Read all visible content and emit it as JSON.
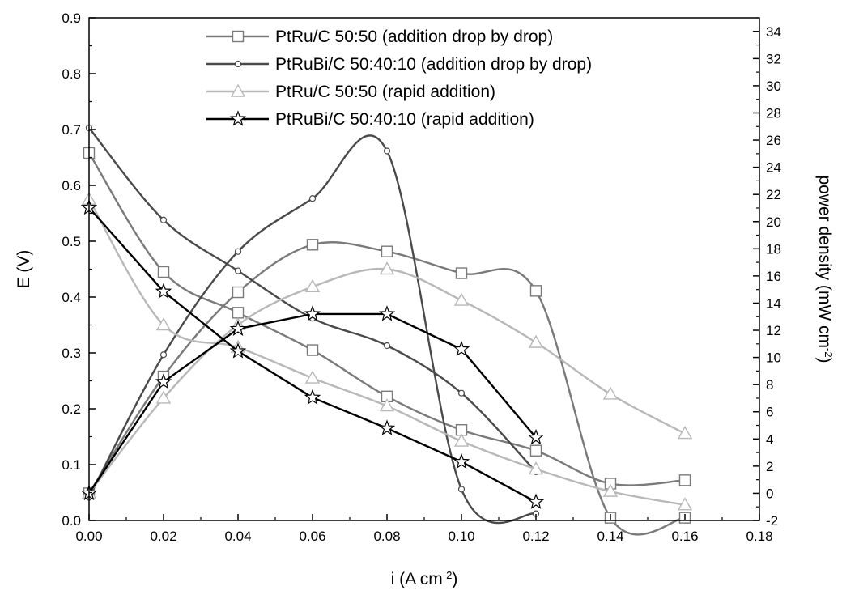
{
  "chart_data": {
    "type": "line",
    "x_axis": {
      "range": [
        0.0,
        0.18
      ],
      "ticks": [
        "0.00",
        "0.02",
        "0.04",
        "0.06",
        "0.08",
        "0.10",
        "0.12",
        "0.14",
        "0.16",
        "0.18"
      ],
      "label_main": "i (A cm",
      "label_sup": "-2",
      "label_tail": ")"
    },
    "y_left": {
      "range": [
        0.0,
        0.9
      ],
      "ticks": [
        "0.0",
        "0.1",
        "0.2",
        "0.3",
        "0.4",
        "0.5",
        "0.6",
        "0.7",
        "0.8",
        "0.9"
      ],
      "label": "E (V)"
    },
    "y_right": {
      "range": [
        -2,
        35
      ],
      "ticks": [
        "-2",
        "0",
        "2",
        "4",
        "6",
        "8",
        "10",
        "12",
        "14",
        "16",
        "18",
        "20",
        "22",
        "24",
        "26",
        "28",
        "30",
        "32",
        "34"
      ],
      "label_main": "power density (mW cm",
      "label_sup": "-2",
      "label_tail": ")"
    },
    "legend_position": "top-center",
    "series": [
      {
        "name": "PtRu/C 50:50 (addition drop by drop)",
        "marker": "square",
        "color": "#7a7a7a",
        "voltage": {
          "x": [
            0,
            0.02,
            0.04,
            0.06,
            0.08,
            0.1,
            0.12,
            0.14,
            0.16
          ],
          "y": [
            0.658,
            0.445,
            0.372,
            0.305,
            0.222,
            0.162,
            0.125,
            0.066,
            0.072
          ]
        },
        "power": {
          "x": [
            0,
            0.02,
            0.04,
            0.06,
            0.08,
            0.1,
            0.12,
            0.14,
            0.16
          ],
          "y": [
            0,
            8.6,
            14.8,
            18.3,
            17.8,
            16.2,
            14.9,
            -1.8,
            -1.8
          ]
        }
      },
      {
        "name": "PtRuBi/C 50:40:10 (addition drop by drop)",
        "marker": "circle",
        "color": "#4a4a4a",
        "voltage": {
          "x": [
            0,
            0.02,
            0.04,
            0.06,
            0.08,
            0.1,
            0.12
          ],
          "y": [
            0.703,
            0.538,
            0.447,
            0.362,
            0.313,
            0.228,
            0.087
          ]
        },
        "power": {
          "x": [
            0,
            0.02,
            0.04,
            0.06,
            0.08,
            0.1,
            0.12
          ],
          "y": [
            -0.3,
            10.2,
            17.8,
            21.7,
            25.2,
            0.3,
            -1.5
          ]
        }
      },
      {
        "name": "PtRu/C 50:50 (rapid addition)",
        "marker": "triangle",
        "color": "#b8b8b8",
        "voltage": {
          "x": [
            0,
            0.02,
            0.04,
            0.06,
            0.08,
            0.1,
            0.12,
            0.14,
            0.16
          ],
          "y": [
            0.575,
            0.35,
            0.31,
            0.255,
            0.205,
            0.142,
            0.092,
            0.052,
            0.028
          ]
        },
        "power": {
          "x": [
            0,
            0.02,
            0.04,
            0.06,
            0.08,
            0.1,
            0.12,
            0.14,
            0.16
          ],
          "y": [
            0,
            7.0,
            12.4,
            15.2,
            16.5,
            14.2,
            11.1,
            7.3,
            4.4
          ]
        }
      },
      {
        "name": "PtRuBi/C 50:40:10 (rapid addition)",
        "marker": "star",
        "color": "#000000",
        "voltage": {
          "x": [
            0,
            0.02,
            0.04,
            0.06,
            0.08,
            0.1,
            0.12
          ],
          "y": [
            0.56,
            0.41,
            0.303,
            0.22,
            0.165,
            0.105,
            0.033
          ]
        },
        "power": {
          "x": [
            0,
            0.02,
            0.04,
            0.06,
            0.08,
            0.1,
            0.12
          ],
          "y": [
            0,
            8.2,
            12.1,
            13.2,
            13.2,
            10.6,
            4.1
          ]
        }
      }
    ]
  }
}
